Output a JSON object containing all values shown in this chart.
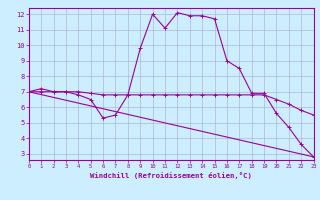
{
  "xlabel": "Windchill (Refroidissement éolien,°C)",
  "bg_color": "#cceeff",
  "line_color": "#990099",
  "grid_color": "#aaaacc",
  "xlim": [
    0,
    23
  ],
  "ylim": [
    2.6,
    12.4
  ],
  "xticks": [
    0,
    1,
    2,
    3,
    4,
    5,
    6,
    7,
    8,
    9,
    10,
    11,
    12,
    13,
    14,
    15,
    16,
    17,
    18,
    19,
    20,
    21,
    22,
    23
  ],
  "yticks": [
    3,
    4,
    5,
    6,
    7,
    8,
    9,
    10,
    11,
    12
  ],
  "line1_x": [
    0,
    1,
    2,
    3,
    4,
    5,
    6,
    7,
    8,
    9,
    10,
    11,
    12,
    13,
    14,
    15,
    16,
    17,
    18,
    19,
    20,
    21,
    22,
    23
  ],
  "line1_y": [
    7.0,
    7.2,
    7.0,
    7.0,
    6.8,
    6.5,
    5.3,
    5.5,
    6.8,
    9.8,
    12.0,
    11.1,
    12.1,
    11.9,
    11.9,
    11.7,
    9.0,
    8.5,
    6.9,
    6.9,
    5.6,
    4.7,
    3.6,
    2.8
  ],
  "line2_x": [
    0,
    1,
    2,
    3,
    4,
    5,
    6,
    7,
    8,
    9,
    10,
    11,
    12,
    13,
    14,
    15,
    16,
    17,
    18,
    19,
    20,
    21,
    22,
    23
  ],
  "line2_y": [
    7.0,
    7.0,
    7.0,
    7.0,
    7.0,
    6.9,
    6.8,
    6.8,
    6.8,
    6.8,
    6.8,
    6.8,
    6.8,
    6.8,
    6.8,
    6.8,
    6.8,
    6.8,
    6.8,
    6.8,
    6.5,
    6.2,
    5.8,
    5.5
  ],
  "line3_x": [
    0,
    23
  ],
  "line3_y": [
    7.0,
    2.8
  ]
}
